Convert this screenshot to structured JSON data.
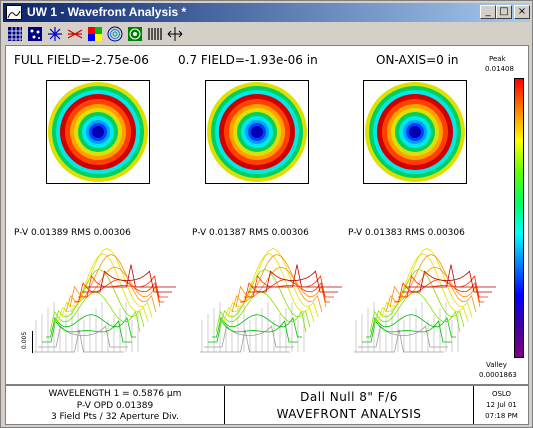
{
  "window": {
    "title": "UW 1 - Wavefront Analysis *",
    "controls": {
      "minimize": "_",
      "maximize": "□",
      "close": "×"
    }
  },
  "toolbar": {
    "icons": [
      "grid-icon",
      "spots-icon",
      "star-icon",
      "rays-icon",
      "color-grid-icon",
      "contour-icon",
      "target-icon",
      "bars-icon",
      "arrows-icon"
    ]
  },
  "plot": {
    "field_labels": [
      "FULL FIELD=-2.75e-06",
      "0.7 FIELD=-1.93e-06  in",
      "ON-AXIS=0  in"
    ],
    "stats": [
      "P-V 0.01389 RMS 0.00306",
      "P-V 0.01387 RMS 0.00306",
      "P-V 0.01383 RMS 0.00306"
    ],
    "scale": {
      "peak_label": "Peak",
      "peak_value": "0.01408",
      "valley_label": "Valley",
      "valley_value": "0.0001863"
    },
    "axis_label": "0.005",
    "colors": [
      "#0000b0",
      "#0040ff",
      "#00a0ff",
      "#00e8e8",
      "#00d060",
      "#60e000",
      "#e0e000",
      "#ffa000",
      "#ff4000",
      "#d00000"
    ]
  },
  "status": {
    "wavelength": "WAVELENGTH 1 = 0.5876 µm",
    "pv_opd": "P-V OPD 0.01389",
    "field_pts": "3 Field Pts / 32 Aperture Div.",
    "lens_title": "Dall Null 8\" F/6",
    "analysis": "WAVEFRONT ANALYSIS",
    "program": "OSLO",
    "date": "12 Jul 01",
    "time": "07:18 PM"
  }
}
